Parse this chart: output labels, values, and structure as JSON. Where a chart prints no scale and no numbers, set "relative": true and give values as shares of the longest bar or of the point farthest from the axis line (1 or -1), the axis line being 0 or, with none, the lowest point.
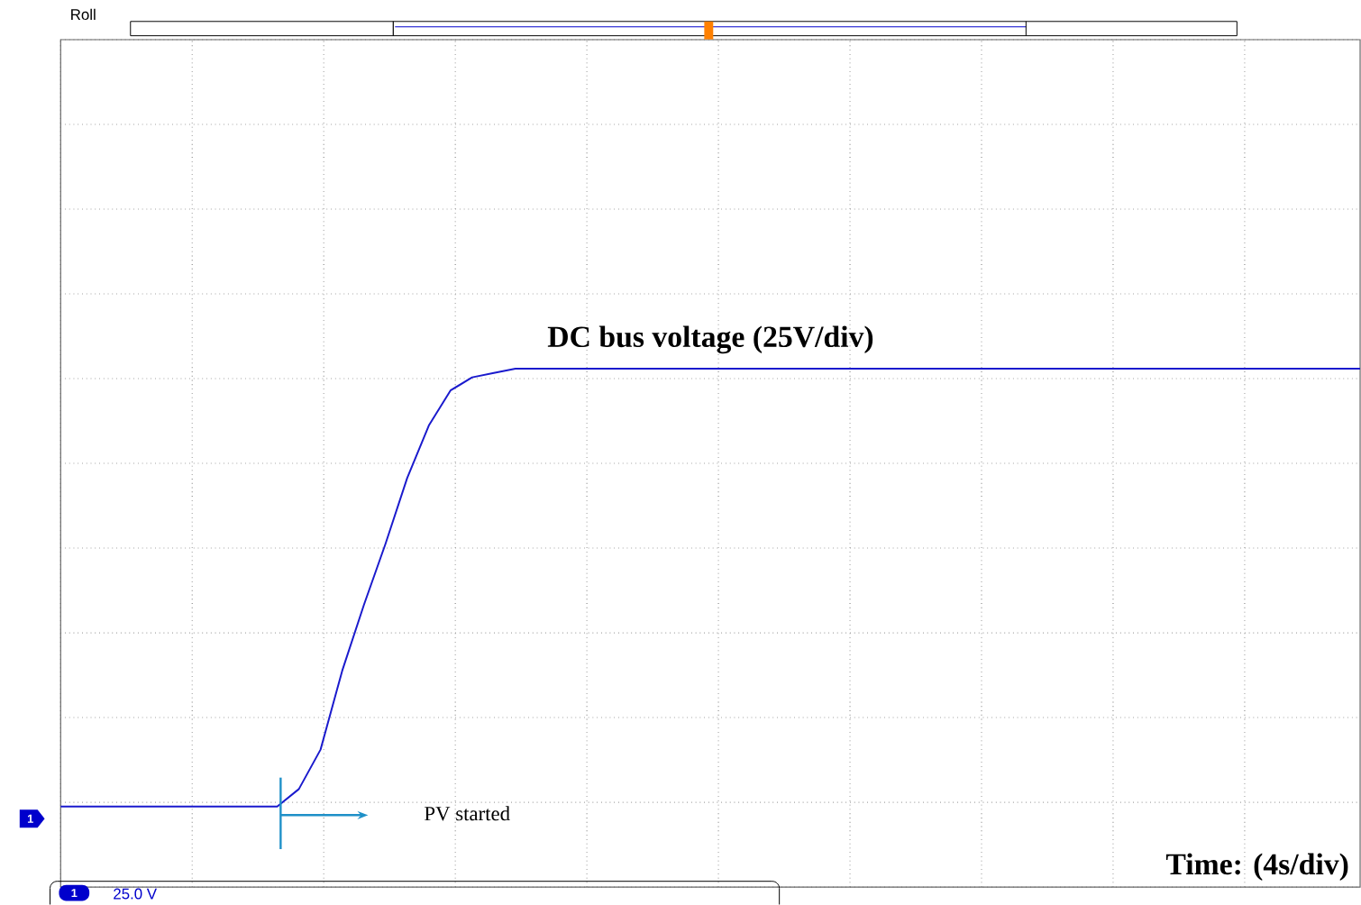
{
  "chart_data": {
    "type": "line",
    "relative": true,
    "grid": true,
    "categories": [
      null,
      null,
      null,
      null,
      null,
      null,
      null,
      null,
      null,
      null,
      null,
      null,
      null,
      null,
      null,
      null,
      null,
      null,
      null,
      null,
      null,
      null,
      null,
      null,
      null,
      null,
      null,
      null,
      null,
      null,
      null,
      null,
      null,
      null,
      null,
      null,
      null,
      null,
      null,
      null,
      null,
      null,
      null,
      null,
      null,
      null,
      null,
      null,
      null,
      null,
      null,
      null,
      null,
      null,
      null,
      null,
      null,
      null,
      null,
      null,
      null
    ],
    "series": [
      {
        "color": "#1a1acd",
        "values": [
          0,
          0,
          0,
          0,
          0,
          0,
          0,
          0,
          0,
          0,
          0,
          0.04,
          0.13,
          0.31,
          0.46,
          0.6,
          0.75,
          0.87,
          0.95,
          0.98,
          0.99,
          1,
          1,
          1,
          1,
          1,
          1,
          1,
          1,
          1,
          1,
          1,
          1,
          1,
          1,
          1,
          1,
          1,
          1,
          1,
          1,
          1,
          1,
          1,
          1,
          1,
          1,
          1,
          1,
          1,
          1,
          1,
          1,
          1,
          1,
          1,
          1,
          1,
          1,
          1,
          1
        ]
      }
    ],
    "annotations": [
      "DC bus voltage (25V/div)",
      "PV started",
      "Time: (4s/div)",
      "Roll",
      "25.0 V",
      "1"
    ]
  }
}
